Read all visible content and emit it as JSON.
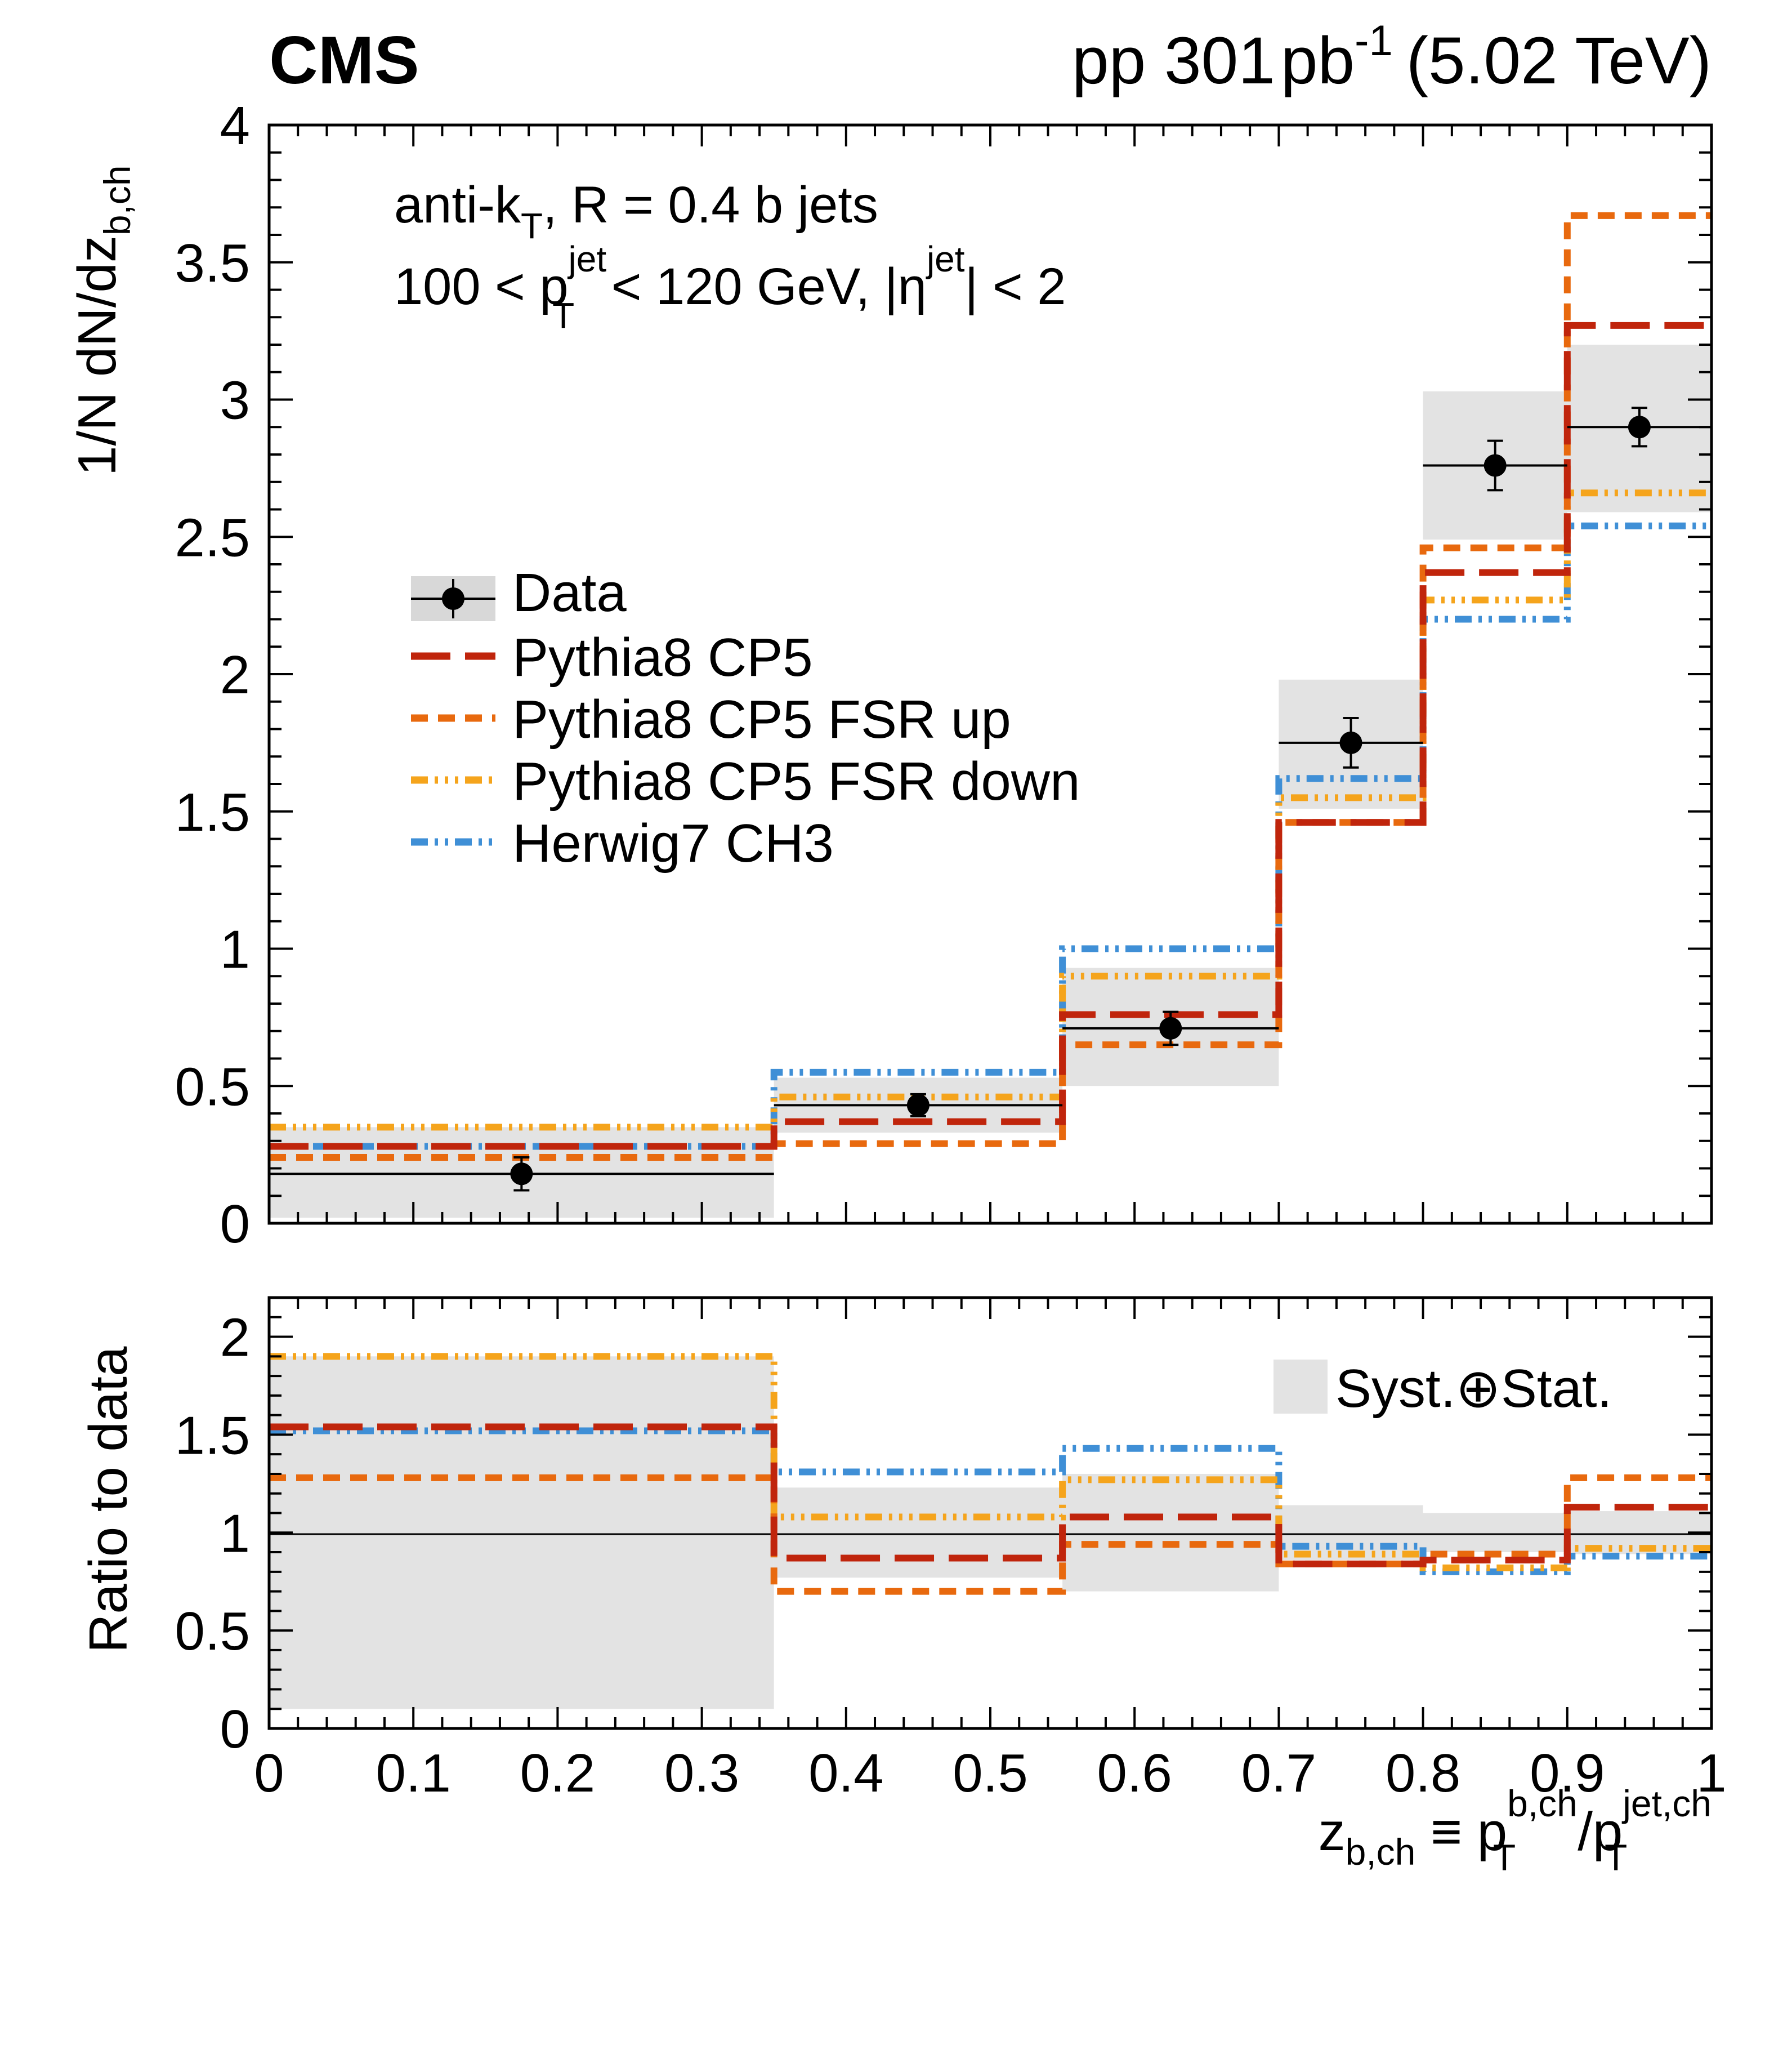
{
  "header": {
    "experiment": "CMS",
    "collision": "pp 301",
    "lumi_unit": "pb",
    "lumi_exp": "-1",
    "energy": "(5.02 TeV)"
  },
  "annotation": {
    "line1_main": "anti-k",
    "line1_sub": "T",
    "line1_rest": ", R = 0.4 b jets",
    "line2_a": "100 < p",
    "line2_sup": "jet",
    "line2_sub": "T",
    "line2_b": " < 120 GeV, |η",
    "line2_sup2": "jet",
    "line2_c": "| < 2"
  },
  "axes": {
    "top_ylabel_main": "1/N dN/dz",
    "top_ylabel_sub": "b,ch",
    "bottom_ylabel": "Ratio to data",
    "xlabel_z": "z",
    "xlabel_zsub": "b,ch",
    "xlabel_mid": " ≡ p",
    "xlabel_sup1": "b,ch",
    "xlabel_sub1": "T",
    "xlabel_slash": "/p",
    "xlabel_sup2": "jet,ch",
    "xlabel_sub2": "T"
  },
  "legend": {
    "top": [
      "Data",
      "Pythia8 CP5",
      "Pythia8 CP5 FSR up",
      "Pythia8 CP5 FSR down",
      "Herwig7 CH3"
    ],
    "bottom": "Syst.⊕Stat."
  },
  "colors": {
    "pythia": "#c0250c",
    "fsr_up": "#e8690e",
    "fsr_down": "#f5a41c",
    "herwig": "#3f8fd6",
    "band": "#e3e3e3",
    "data": "#000000"
  },
  "chart_data": [
    {
      "type": "step-histogram",
      "panel": "main",
      "xlim": [
        0,
        1
      ],
      "ylim": [
        0,
        4
      ],
      "yticks": [
        "0",
        "0.5",
        "1",
        "1.5",
        "2",
        "2.5",
        "3",
        "3.5",
        "4"
      ],
      "bin_edges": [
        0,
        0.35,
        0.55,
        0.7,
        0.8,
        0.9,
        1.0
      ],
      "data": {
        "x": [
          0.175,
          0.45,
          0.625,
          0.75,
          0.85,
          0.95
        ],
        "y": [
          0.18,
          0.43,
          0.71,
          1.75,
          2.76,
          2.9
        ],
        "stat_err": [
          0.06,
          0.04,
          0.06,
          0.09,
          0.09,
          0.07
        ],
        "syst_low": [
          0.02,
          0.33,
          0.5,
          1.51,
          2.49,
          2.59
        ],
        "syst_high": [
          0.35,
          0.53,
          0.93,
          1.98,
          3.03,
          3.2
        ]
      },
      "series": [
        {
          "name": "Pythia8 CP5",
          "values": [
            0.28,
            0.37,
            0.76,
            1.46,
            2.37,
            3.27
          ]
        },
        {
          "name": "Pythia8 CP5 FSR up",
          "values": [
            0.24,
            0.29,
            0.65,
            1.46,
            2.46,
            3.67
          ]
        },
        {
          "name": "Pythia8 CP5 FSR down",
          "values": [
            0.35,
            0.46,
            0.9,
            1.55,
            2.27,
            2.66
          ]
        },
        {
          "name": "Herwig7 CH3",
          "values": [
            0.28,
            0.55,
            1.0,
            1.62,
            2.2,
            2.54
          ]
        }
      ]
    },
    {
      "type": "step-histogram",
      "panel": "ratio",
      "xlim": [
        0,
        1
      ],
      "ylim": [
        0,
        2.2
      ],
      "yticks": [
        "0",
        "0.5",
        "1",
        "1.5",
        "2"
      ],
      "xticks": [
        "0",
        "0.1",
        "0.2",
        "0.3",
        "0.4",
        "0.5",
        "0.6",
        "0.7",
        "0.8",
        "0.9",
        "1"
      ],
      "bin_edges": [
        0,
        0.35,
        0.55,
        0.7,
        0.8,
        0.9,
        1.0
      ],
      "band_low": [
        0.1,
        0.77,
        0.7,
        0.86,
        0.9,
        0.89
      ],
      "band_high": [
        1.9,
        1.23,
        1.3,
        1.14,
        1.1,
        1.11
      ],
      "series": [
        {
          "name": "Pythia8 CP5",
          "values": [
            1.54,
            0.87,
            1.08,
            0.84,
            0.86,
            1.13
          ]
        },
        {
          "name": "Pythia8 CP5 FSR up",
          "values": [
            1.28,
            0.7,
            0.94,
            0.84,
            0.89,
            1.28
          ]
        },
        {
          "name": "Pythia8 CP5 FSR down",
          "values": [
            1.9,
            1.08,
            1.27,
            0.89,
            0.82,
            0.92
          ]
        },
        {
          "name": "Herwig7 CH3",
          "values": [
            1.52,
            1.31,
            1.43,
            0.93,
            0.8,
            0.88
          ]
        }
      ]
    }
  ]
}
